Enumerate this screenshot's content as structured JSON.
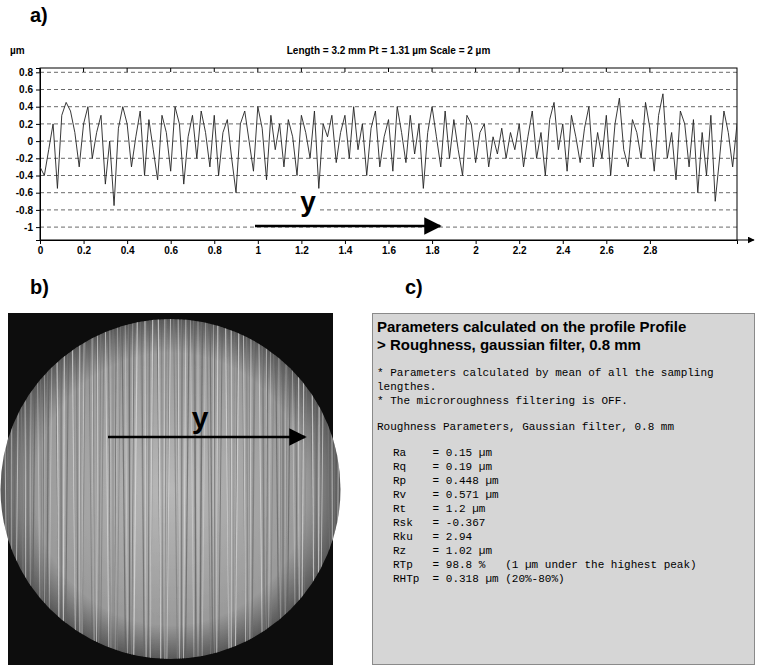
{
  "panel_labels": [
    "a)",
    "b)",
    "c)"
  ],
  "chart_data": {
    "type": "line",
    "title": "Length = 3.2 mm  Pt = 1.31 µm  Scale = 2 µm",
    "y_label": "µm",
    "annotation": "y",
    "color": "#222222",
    "grid": true,
    "xlim": [
      0,
      3.2
    ],
    "ylim": [
      -1.15,
      0.85
    ],
    "xticks": [
      0,
      0.2,
      0.4,
      0.6,
      0.8,
      1,
      1.2,
      1.4,
      1.6,
      1.8,
      2,
      2.2,
      2.4,
      2.6,
      2.8
    ],
    "yticks": [
      0.8,
      0.6,
      0.4,
      0.2,
      0,
      -0.2,
      -0.4,
      -0.6,
      -0.8,
      -1
    ],
    "x": [
      0,
      0.02,
      0.04,
      0.06,
      0.08,
      0.1,
      0.12,
      0.14,
      0.16,
      0.18,
      0.2,
      0.22,
      0.24,
      0.26,
      0.28,
      0.3,
      0.32,
      0.34,
      0.36,
      0.38,
      0.4,
      0.42,
      0.44,
      0.46,
      0.48,
      0.5,
      0.52,
      0.54,
      0.56,
      0.58,
      0.6,
      0.62,
      0.64,
      0.66,
      0.68,
      0.7,
      0.72,
      0.74,
      0.76,
      0.78,
      0.8,
      0.82,
      0.84,
      0.86,
      0.88,
      0.9,
      0.92,
      0.94,
      0.96,
      0.98,
      1,
      1.02,
      1.04,
      1.06,
      1.08,
      1.1,
      1.12,
      1.14,
      1.16,
      1.18,
      1.2,
      1.22,
      1.24,
      1.26,
      1.28,
      1.3,
      1.32,
      1.34,
      1.36,
      1.38,
      1.4,
      1.42,
      1.44,
      1.46,
      1.48,
      1.5,
      1.52,
      1.54,
      1.56,
      1.58,
      1.6,
      1.62,
      1.64,
      1.66,
      1.68,
      1.7,
      1.72,
      1.74,
      1.76,
      1.78,
      1.8,
      1.82,
      1.84,
      1.86,
      1.88,
      1.9,
      1.92,
      1.94,
      1.96,
      1.98,
      2,
      2.02,
      2.04,
      2.06,
      2.08,
      2.1,
      2.12,
      2.14,
      2.16,
      2.18,
      2.2,
      2.22,
      2.24,
      2.26,
      2.28,
      2.3,
      2.32,
      2.34,
      2.36,
      2.38,
      2.4,
      2.42,
      2.44,
      2.46,
      2.48,
      2.5,
      2.52,
      2.54,
      2.56,
      2.58,
      2.6,
      2.62,
      2.64,
      2.66,
      2.68,
      2.7,
      2.72,
      2.74,
      2.76,
      2.78,
      2.8,
      2.82,
      2.84,
      2.86,
      2.88,
      2.9,
      2.92,
      2.94,
      2.96,
      2.98,
      3,
      3.02,
      3.04,
      3.06,
      3.08,
      3.1,
      3.12,
      3.14,
      3.16,
      3.18,
      3.2
    ],
    "values": [
      -0.3,
      -0.4,
      -0.1,
      0.2,
      -0.55,
      0.3,
      0.45,
      0.35,
      0.1,
      -0.3,
      0.2,
      0.4,
      -0.2,
      0.1,
      0.3,
      -0.5,
      0.0,
      -0.75,
      0.15,
      0.4,
      0.2,
      -0.3,
      0.05,
      0.35,
      -0.4,
      0.25,
      -0.1,
      -0.45,
      0.3,
      0.1,
      -0.35,
      0.4,
      0.2,
      -0.5,
      0.05,
      0.3,
      -0.2,
      0.35,
      0.1,
      -0.3,
      0.3,
      -0.4,
      0.1,
      0.25,
      -0.2,
      -0.6,
      0.2,
      0.35,
      0.0,
      -0.35,
      0.4,
      0.15,
      -0.45,
      0.3,
      -0.1,
      0.2,
      -0.3,
      0.25,
      0.05,
      -0.4,
      0.3,
      0.1,
      -0.2,
      0.35,
      -0.55,
      0.2,
      0.05,
      0.3,
      -0.25,
      0.1,
      0.3,
      -0.2,
      0.4,
      -0.1,
      0.2,
      -0.4,
      0.15,
      0.35,
      -0.3,
      0.05,
      0.25,
      -0.35,
      0.4,
      0.1,
      -0.25,
      0.3,
      -0.15,
      0.2,
      -0.55,
      0.1,
      0.4,
      0.05,
      -0.3,
      0.35,
      -0.2,
      0.25,
      -0.1,
      -0.4,
      0.3,
      0.2,
      -0.25,
      0.1,
      0.2,
      -0.3,
      0.05,
      -0.15,
      0.15,
      -0.2,
      0.1,
      -0.1,
      0.2,
      -0.3,
      0.05,
      0.35,
      -0.2,
      0.1,
      -0.4,
      0.25,
      0.45,
      -0.1,
      0.2,
      -0.35,
      0.3,
      0.05,
      -0.25,
      0.15,
      0.4,
      -0.3,
      0.1,
      -0.2,
      0.3,
      -0.4,
      0.2,
      0.5,
      -0.1,
      -0.3,
      0.25,
      0.1,
      -0.2,
      0.45,
      0.15,
      -0.35,
      0.3,
      0.55,
      -0.2,
      0.1,
      -0.45,
      0.35,
      0.2,
      -0.3,
      0.25,
      -0.6,
      0.1,
      -0.4,
      0.3,
      -0.7,
      -0.2,
      0.35,
      0.1,
      -0.3,
      0.2
    ]
  },
  "panel_b": {
    "annotation": "y"
  },
  "panel_c": {
    "title": [
      "Parameters calculated on the profile Profile",
      "> Roughness, gaussian filter, 0.8 mm"
    ],
    "notes": [
      "* Parameters calculated by mean of all the sampling lengthes.",
      "* The microroughness filtering is OFF."
    ],
    "section": "Roughness Parameters, Gaussian filter, 0.8 mm",
    "parameters": [
      "Ra    = 0.15 µm",
      "Rq    = 0.19 µm",
      "Rp    = 0.448 µm",
      "Rv    = 0.571 µm",
      "Rt    = 1.2 µm",
      "Rsk   = -0.367",
      "Rku   = 2.94",
      "Rz    = 1.02 µm",
      "RTp   = 98.8 %   (1 µm under the highest peak)",
      "RHTp  = 0.318 µm (20%-80%)"
    ]
  }
}
